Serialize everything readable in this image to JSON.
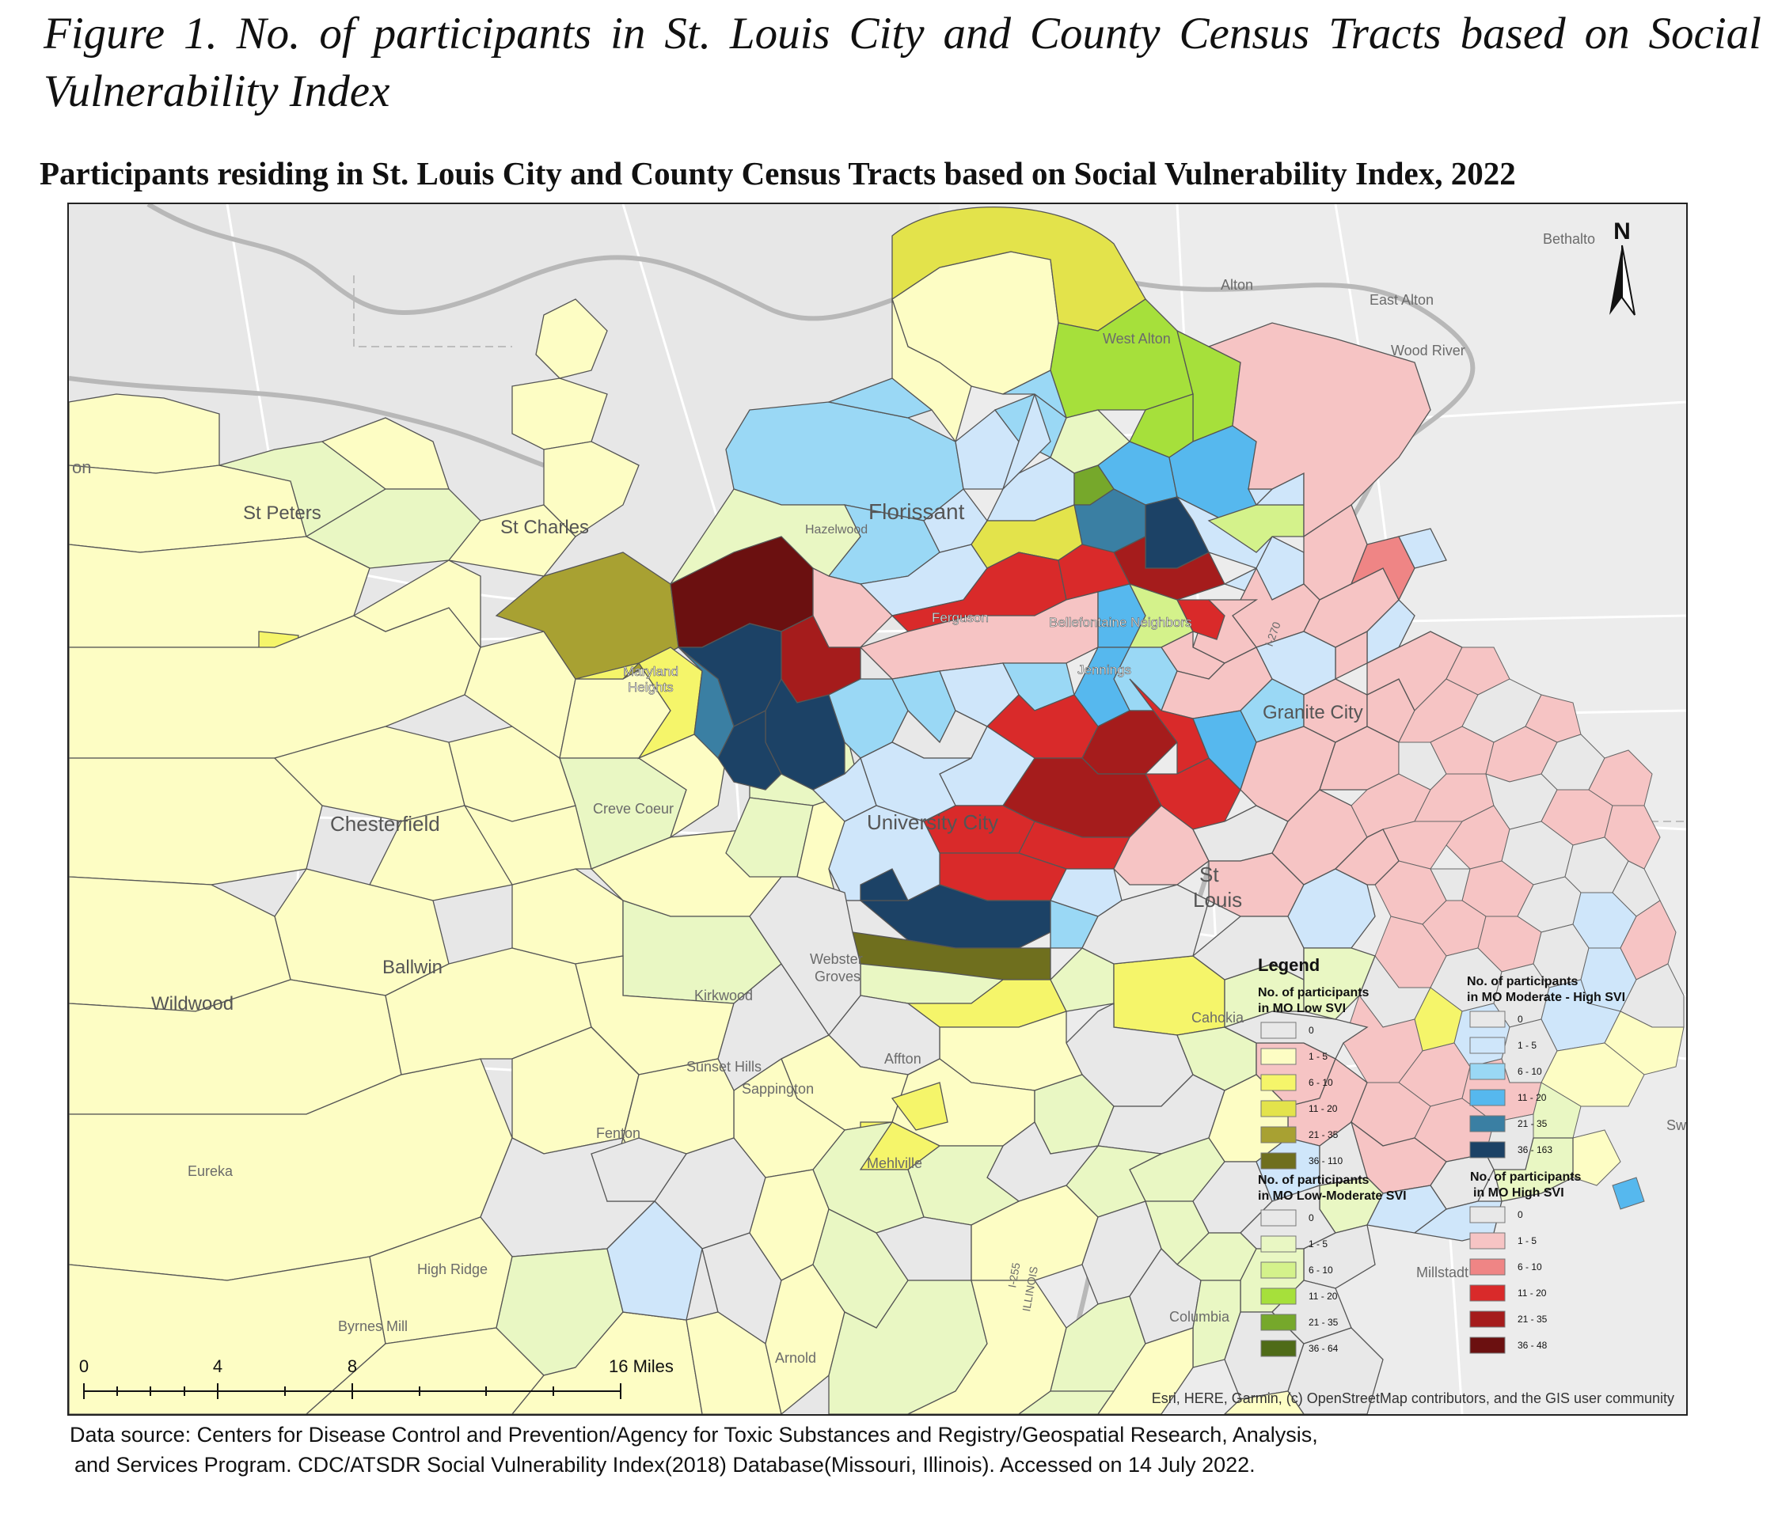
{
  "figure_caption": "Figure 1. No. of participants in St. Louis City and County Census Tracts based on Social Vulnerability Index",
  "map_title": "Participants residing in St. Louis City and County Census Tracts based on Social Vulnerability Index, 2022",
  "north_arrow": "N",
  "places": {
    "bethalto": "Bethalto",
    "alton": "Alton",
    "east_alton": "East Alton",
    "west_alton": "West Alton",
    "wood_river": "Wood River",
    "on": "on",
    "st_peters": "St Peters",
    "st_charles": "St Charles",
    "florissant": "Florissant",
    "hazelwood": "Hazelwood",
    "ferguson": "Ferguson",
    "bellefontaine": "Bellefontaine Neighbors",
    "maryland_heights_1": "Maryland",
    "maryland_heights_2": "Heights",
    "jennings": "Jennings",
    "granite_city": "Granite City",
    "chesterfield": "Chesterfield",
    "creve_coeur": "Creve Coeur",
    "university_city": "University City",
    "st_louis_1": "St",
    "st_louis_2": "Louis",
    "ballwin": "Ballwin",
    "wildwood": "Wildwood",
    "webster_1": "Webster",
    "webster_2": "Groves",
    "kirkwood": "Kirkwood",
    "cahokia": "Cahokia",
    "sunset_hills": "Sunset Hills",
    "affton": "Affton",
    "sappington": "Sappington",
    "fenton": "Fenton",
    "eureka": "Eureka",
    "mehlville": "Mehlville",
    "high_ridge": "High Ridge",
    "millstadt": "Millstadt",
    "byrnes_mill": "Byrnes Mill",
    "columbia": "Columbia",
    "arnold": "Arnold",
    "sw": "Sw",
    "i255": "I-255",
    "illinois": "ILLINOIS",
    "i270": "I-270"
  },
  "legend": {
    "title": "Legend",
    "groups": [
      {
        "title_line1": "No. of participants",
        "title_line2": "in MO Low SVI",
        "items": [
          {
            "label": "0",
            "color": "#e8e8e8"
          },
          {
            "label": "1 - 5",
            "color": "#fdfdc4"
          },
          {
            "label": "6 - 10",
            "color": "#f5f56a"
          },
          {
            "label": "11 - 20",
            "color": "#e3e34b"
          },
          {
            "label": "21 - 35",
            "color": "#a8a132"
          },
          {
            "label": "36 - 110",
            "color": "#6f6f1e"
          }
        ]
      },
      {
        "title_line1": "No. of participants",
        "title_line2": "in MO Low-Moderate SVI",
        "items": [
          {
            "label": "0",
            "color": "#e8e8e8"
          },
          {
            "label": "1 - 5",
            "color": "#e9f7c3"
          },
          {
            "label": "6 - 10",
            "color": "#d4f28b"
          },
          {
            "label": "11 - 20",
            "color": "#a6e03b"
          },
          {
            "label": "21 - 35",
            "color": "#76a82b"
          },
          {
            "label": "36 - 64",
            "color": "#4f6b18"
          }
        ]
      },
      {
        "title_line1": "No. of participants",
        "title_line2": "in MO Moderate - High SVI",
        "items": [
          {
            "label": "0",
            "color": "#e8e8e8"
          },
          {
            "label": "1 - 5",
            "color": "#cfe6fa"
          },
          {
            "label": "6 - 10",
            "color": "#9ad8f5"
          },
          {
            "label": "11 - 20",
            "color": "#56b8ee"
          },
          {
            "label": "21 - 35",
            "color": "#3a7fa3"
          },
          {
            "label": "36 - 163",
            "color": "#1c4266"
          }
        ]
      },
      {
        "title_line1": "No. of participants",
        "title_line2": "in MO High SVI",
        "items": [
          {
            "label": "0",
            "color": "#e8e8e8"
          },
          {
            "label": "1 - 5",
            "color": "#f6c4c4"
          },
          {
            "label": "6 - 10",
            "color": "#ef8585"
          },
          {
            "label": "11 - 20",
            "color": "#d92a2a"
          },
          {
            "label": "21 - 35",
            "color": "#a51c1c"
          },
          {
            "label": "36 - 48",
            "color": "#6b1010"
          }
        ]
      }
    ]
  },
  "scale_bar": {
    "ticks": [
      "0",
      "4",
      "8",
      "16 Miles"
    ]
  },
  "attribution": "Esri, HERE, Garmin, (c) OpenStreetMap contributors, and the GIS user community",
  "data_source": {
    "line1": "Data source: Centers for Disease Control and Prevention/Agency for Toxic Substances and Registry/Geospatial Research, Analysis,",
    "line2": "and Services Program. CDC/ATSDR Social Vulnerability Index(2018) Database(Missouri, Illinois). Accessed on 14 July 2022."
  }
}
